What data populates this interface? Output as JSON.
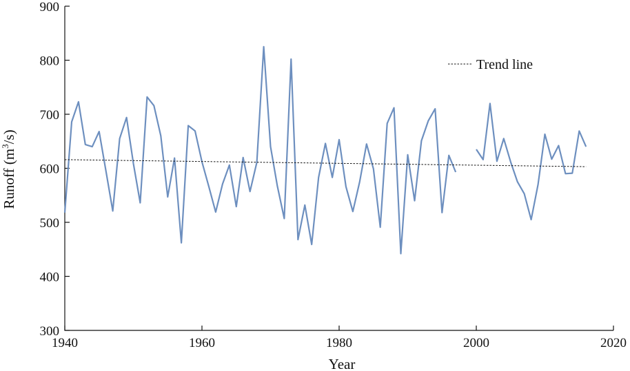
{
  "chart_data": {
    "type": "line",
    "xlabel": "Year",
    "ylabel_main": "Runoff (m",
    "ylabel_sup": "3",
    "ylabel_tail": "/s)",
    "xlim": [
      1940,
      2020
    ],
    "ylim": [
      300,
      900
    ],
    "x_ticks": [
      "1940",
      "1960",
      "1980",
      "2000",
      "2020"
    ],
    "y_ticks": [
      "300",
      "400",
      "500",
      "600",
      "700",
      "800",
      "900"
    ],
    "grid": false,
    "legend_position": "top-right",
    "series": [
      {
        "name": "Runoff",
        "color": "#6d8fbf",
        "segments": [
          {
            "x": [
              1940,
              1941,
              1942,
              1943,
              1944,
              1945,
              1946,
              1947,
              1948,
              1949,
              1950,
              1951,
              1952,
              1953,
              1954,
              1955,
              1956,
              1957,
              1958,
              1959,
              1960,
              1961,
              1962,
              1963,
              1964,
              1965,
              1966,
              1967,
              1968,
              1969,
              1970,
              1971,
              1972,
              1973,
              1974,
              1975,
              1976,
              1977,
              1978,
              1979,
              1980,
              1981,
              1982,
              1983,
              1984,
              1985,
              1986,
              1987,
              1988,
              1989,
              1990,
              1991,
              1992,
              1993,
              1994,
              1995,
              1996,
              1997
            ],
            "y": [
              518,
              686,
              723,
              644,
              640,
              668,
              595,
              521,
              655,
              694,
              609,
              536,
              732,
              716,
              660,
              547,
              619,
              462,
              679,
              669,
              612,
              566,
              519,
              571,
              606,
              529,
              620,
              557,
              611,
              825,
              640,
              567,
              507,
              802,
              468,
              532,
              459,
              583,
              646,
              583,
              653,
              566,
              520,
              575,
              645,
              599,
              491,
              683,
              712,
              442,
              625,
              540,
              651,
              688,
              710,
              518,
              624,
              593
            ]
          },
          {
            "x": [
              2000,
              2001,
              2002,
              2003,
              2004,
              2005,
              2006,
              2007,
              2008,
              2009,
              2010,
              2011,
              2012,
              2013,
              2014,
              2015,
              2016
            ],
            "y": [
              635,
              616,
              720,
              613,
              655,
              612,
              575,
              553,
              505,
              570,
              663,
              617,
              642,
              590,
              591,
              669,
              640
            ]
          }
        ]
      }
    ],
    "trend_line": {
      "name": "Trend line",
      "x": [
        1940,
        2016
      ],
      "y": [
        616,
        603
      ]
    }
  }
}
